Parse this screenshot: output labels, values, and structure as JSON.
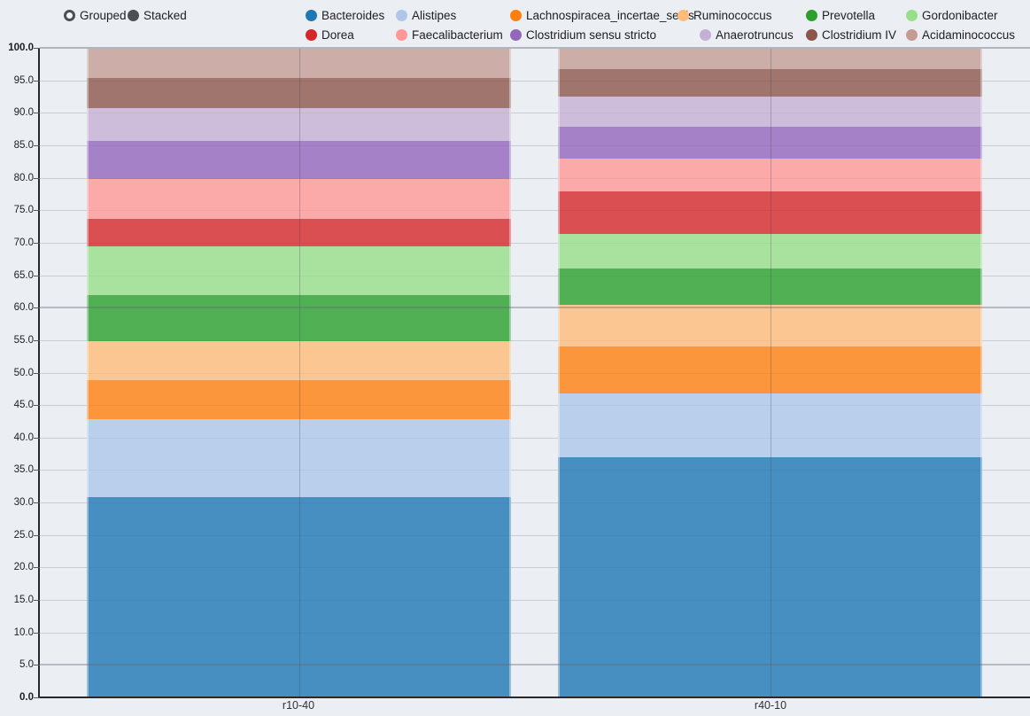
{
  "controls": {
    "modes": [
      {
        "label": "Grouped",
        "selected": false
      },
      {
        "label": "Stacked",
        "selected": true
      }
    ]
  },
  "chart_data": {
    "type": "bar",
    "stacked": true,
    "orientation": "vertical",
    "title": "",
    "xlabel": "",
    "ylabel": "",
    "categories": [
      "r10-40",
      "r40-10"
    ],
    "ylim": [
      0,
      100
    ],
    "ytick_step": 5,
    "ytick_decimals": 1,
    "grid": true,
    "emphasized_gridlines": [
      100,
      60,
      5
    ],
    "legend_position": "top",
    "bar_opacity": 0.8,
    "series": [
      {
        "name": "Bacteroides",
        "color": "#1f77b4",
        "values": [
          30.9,
          37.0
        ]
      },
      {
        "name": "Alistipes",
        "color": "#aec7e8",
        "values": [
          11.9,
          9.8
        ]
      },
      {
        "name": "Lachnospiracea_incertae_sedis",
        "color": "#ff7f0e",
        "values": [
          6.0,
          7.2
        ]
      },
      {
        "name": "Ruminococcus",
        "color": "#ffbb78",
        "values": [
          6.0,
          6.4
        ]
      },
      {
        "name": "Prevotella",
        "color": "#2ca02c",
        "values": [
          7.2,
          5.7
        ]
      },
      {
        "name": "Gordonibacter",
        "color": "#98df8a",
        "values": [
          7.5,
          5.2
        ]
      },
      {
        "name": "Dorea",
        "color": "#d62728",
        "values": [
          4.2,
          6.6
        ]
      },
      {
        "name": "Faecalibacterium",
        "color": "#ff9896",
        "values": [
          6.1,
          5.1
        ]
      },
      {
        "name": "Clostridium sensu stricto",
        "color": "#9467bd",
        "values": [
          5.9,
          4.9
        ]
      },
      {
        "name": "Anaerotruncus",
        "color": "#c5b0d5",
        "values": [
          5.0,
          4.6
        ]
      },
      {
        "name": "Clostridium IV",
        "color": "#8c564b",
        "values": [
          4.6,
          4.2
        ]
      },
      {
        "name": "Acidaminococcus",
        "color": "#c49c94",
        "values": [
          4.7,
          3.3
        ]
      }
    ]
  }
}
